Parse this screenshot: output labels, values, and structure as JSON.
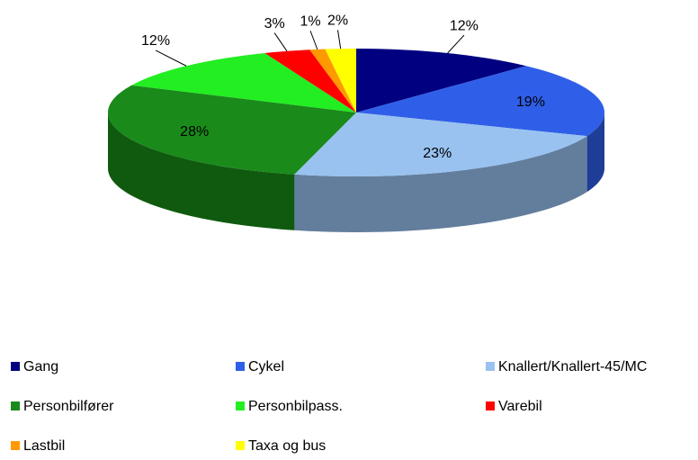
{
  "chart_data": {
    "type": "pie",
    "categories": [
      "Gang",
      "Cykel",
      "Knallert/Knallert-45/MC",
      "Personbilfører",
      "Personbilpass.",
      "Varebil",
      "Lastbil",
      "Taxa og bus"
    ],
    "values": [
      12,
      19,
      23,
      28,
      12,
      3,
      1,
      2
    ],
    "value_labels": [
      "12%",
      "19%",
      "23%",
      "28%",
      "12%",
      "3%",
      "1%",
      "2%"
    ],
    "colors": [
      "#000080",
      "#2f5fe8",
      "#99c2f0",
      "#1a8a1a",
      "#22ee22",
      "#ff0000",
      "#ff9900",
      "#ffff00"
    ],
    "legend": "bottom"
  }
}
